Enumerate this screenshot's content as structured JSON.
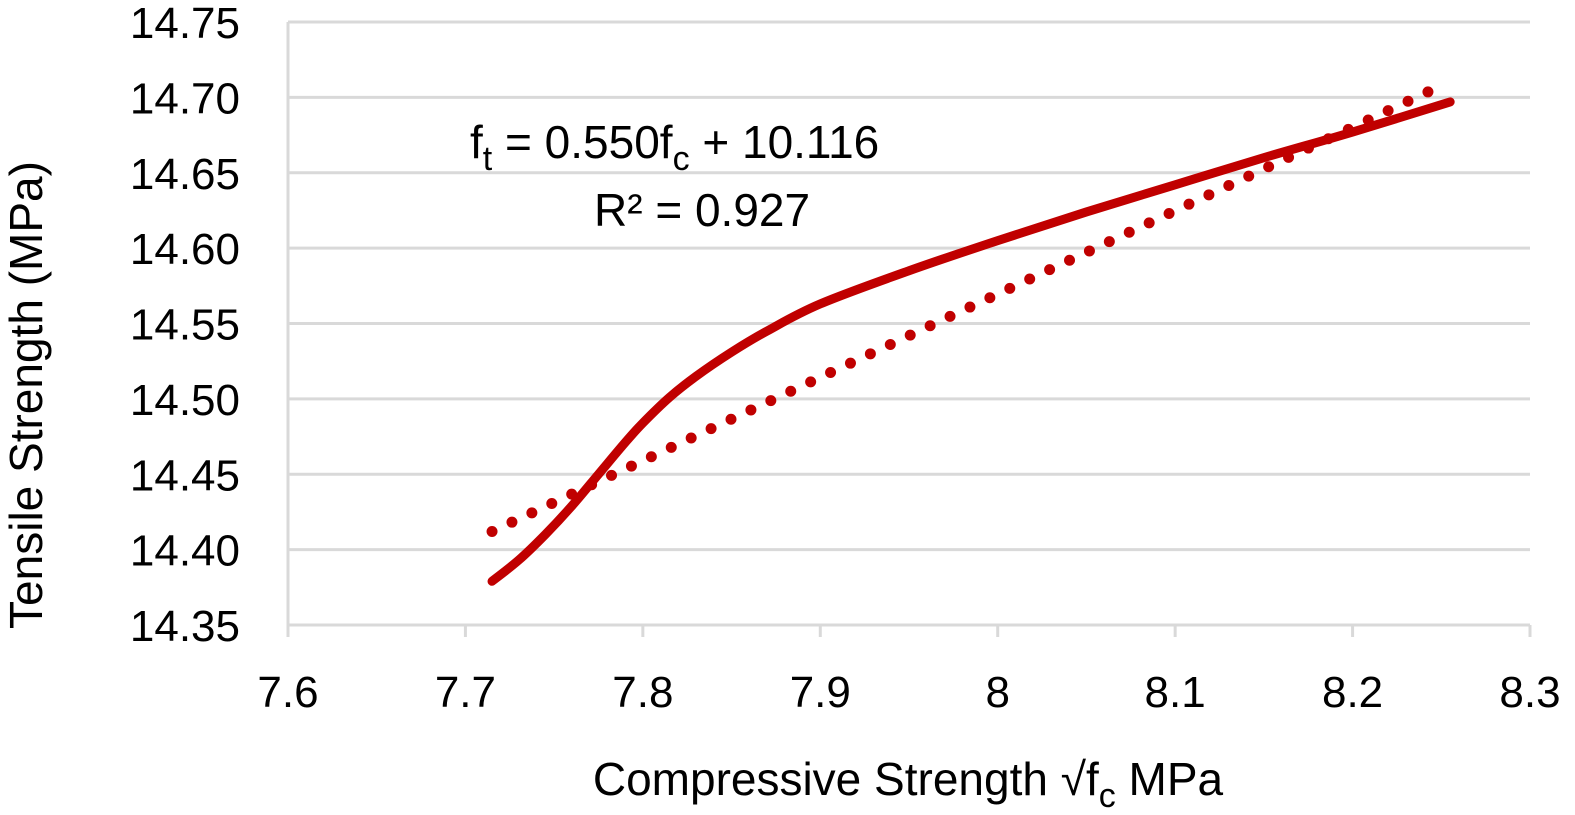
{
  "chart_data": {
    "type": "line",
    "title": "",
    "xlabel": "Compressive Strength √f",
    "xlabel_sub": "c",
    "xlabel_unit": " MPa",
    "ylabel": "Tensile Strength (MPa)",
    "xlim": [
      7.6,
      8.3
    ],
    "ylim": [
      14.35,
      14.75
    ],
    "x_ticks": [
      7.6,
      7.7,
      7.8,
      7.9,
      8.0,
      8.1,
      8.2,
      8.3
    ],
    "x_tick_labels": [
      "7.6",
      "7.7",
      "7.8",
      "7.9",
      "8",
      "8.1",
      "8.2",
      "8.3"
    ],
    "y_ticks": [
      14.35,
      14.4,
      14.45,
      14.5,
      14.55,
      14.6,
      14.65,
      14.7,
      14.75
    ],
    "y_tick_labels": [
      "14.35",
      "14.40",
      "14.45",
      "14.50",
      "14.55",
      "14.60",
      "14.65",
      "14.70",
      "14.75"
    ],
    "grid": "horizontal",
    "legend": "none",
    "series": [
      {
        "style": "solid",
        "color": "#c00000",
        "x": [
          7.715,
          7.73,
          7.745,
          7.76,
          7.775,
          7.79,
          7.8,
          7.815,
          7.83,
          7.85,
          7.87,
          7.9,
          7.95,
          8.0,
          8.05,
          8.1,
          8.15,
          8.2,
          8.255
        ],
        "y": [
          14.379,
          14.393,
          14.41,
          14.429,
          14.45,
          14.471,
          14.484,
          14.501,
          14.515,
          14.531,
          14.545,
          14.563,
          14.585,
          14.605,
          14.624,
          14.642,
          14.66,
          14.677,
          14.697
        ]
      },
      {
        "style": "dotted",
        "color": "#c00000",
        "x": [
          7.715,
          8.245
        ],
        "y": [
          14.412,
          14.705
        ]
      }
    ],
    "annotation": {
      "eq_f": "f",
      "eq_sub1": "t",
      "eq_mid": " = 0.550f",
      "eq_sub2": "c",
      "eq_end": " + 10.116",
      "r2": "R² = 0.927"
    }
  }
}
